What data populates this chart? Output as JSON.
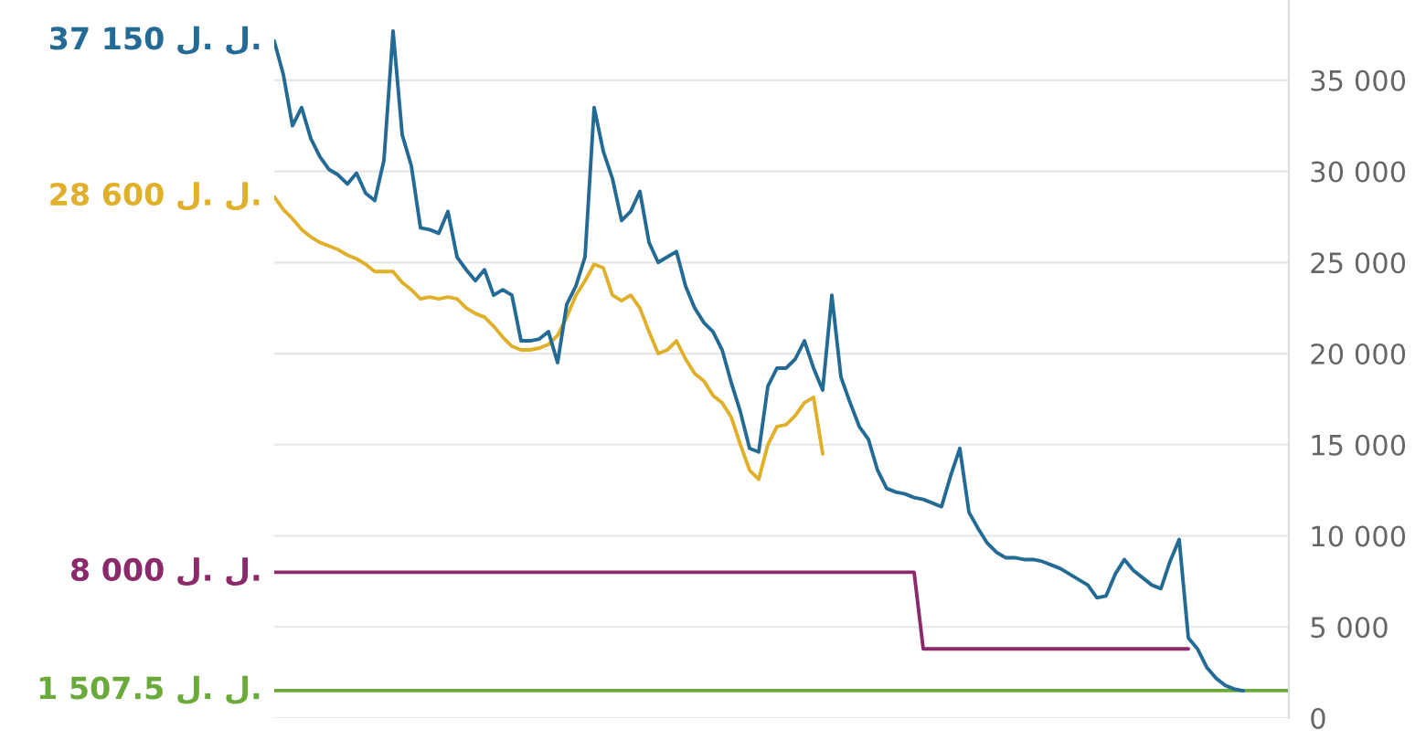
{
  "chart_data": {
    "type": "line",
    "categories": [
      null,
      null,
      null,
      null,
      null,
      null,
      null,
      null,
      null,
      null,
      null,
      null,
      null,
      null,
      null,
      null,
      null,
      null,
      null,
      null,
      null,
      null,
      null,
      null,
      null,
      null,
      null,
      null,
      null,
      null,
      null,
      null,
      null,
      null,
      null,
      null,
      null,
      null,
      null,
      null,
      null,
      null,
      null,
      null,
      null,
      null,
      null,
      null,
      null,
      null,
      null,
      null,
      null,
      null,
      null,
      null,
      null,
      null,
      null,
      null,
      null,
      null,
      null,
      null,
      null,
      null,
      null,
      null,
      null,
      null,
      null,
      null,
      null,
      null,
      null,
      null,
      null,
      null,
      null,
      null,
      null,
      null,
      null,
      null,
      null,
      null,
      null,
      null,
      null,
      null,
      null,
      null,
      null,
      null,
      null,
      null,
      null,
      null,
      null,
      null,
      null,
      null,
      null,
      null,
      null,
      null,
      null,
      null,
      null,
      null,
      null,
      null
    ],
    "series": [
      {
        "name": "1 507.5 ل. ل.",
        "color": "#6aaa3a",
        "values": [
          1507.5,
          1507.5,
          1507.5,
          1507.5,
          1507.5,
          1507.5,
          1507.5,
          1507.5,
          1507.5,
          1507.5,
          1507.5,
          1507.5,
          1507.5,
          1507.5,
          1507.5,
          1507.5,
          1507.5,
          1507.5,
          1507.5,
          1507.5,
          1507.5,
          1507.5,
          1507.5,
          1507.5,
          1507.5,
          1507.5,
          1507.5,
          1507.5,
          1507.5,
          1507.5,
          1507.5,
          1507.5,
          1507.5,
          1507.5,
          1507.5,
          1507.5,
          1507.5,
          1507.5,
          1507.5,
          1507.5,
          1507.5,
          1507.5,
          1507.5,
          1507.5,
          1507.5,
          1507.5,
          1507.5,
          1507.5,
          1507.5,
          1507.5,
          1507.5,
          1507.5,
          1507.5,
          1507.5,
          1507.5,
          1507.5,
          1507.5,
          1507.5,
          1507.5,
          1507.5,
          1507.5,
          1507.5,
          1507.5,
          1507.5,
          1507.5,
          1507.5,
          1507.5,
          1507.5,
          1507.5,
          1507.5,
          1507.5,
          1507.5,
          1507.5,
          1507.5,
          1507.5,
          1507.5,
          1507.5,
          1507.5,
          1507.5,
          1507.5,
          1507.5,
          1507.5,
          1507.5,
          1507.5,
          1507.5,
          1507.5,
          1507.5,
          1507.5,
          1507.5,
          1507.5,
          1507.5,
          1507.5,
          1507.5,
          1507.5,
          1507.5,
          1507.5,
          1507.5,
          1507.5,
          1507.5,
          1507.5,
          1507.5,
          1507.5,
          1507.5,
          1507.5,
          1507.5,
          1507.5,
          1507.5,
          1507.5,
          1507.5,
          1507.5,
          1507.5,
          1507.5
        ]
      },
      {
        "name": "8 000 ل. ل.",
        "color": "#8b2a6b",
        "values": [
          8000,
          8000,
          8000,
          8000,
          8000,
          8000,
          8000,
          8000,
          8000,
          8000,
          8000,
          8000,
          8000,
          8000,
          8000,
          8000,
          8000,
          8000,
          8000,
          8000,
          8000,
          8000,
          8000,
          8000,
          8000,
          8000,
          8000,
          8000,
          8000,
          8000,
          8000,
          8000,
          8000,
          8000,
          8000,
          8000,
          8000,
          8000,
          8000,
          8000,
          8000,
          8000,
          8000,
          8000,
          8000,
          8000,
          8000,
          8000,
          8000,
          8000,
          8000,
          8000,
          8000,
          8000,
          8000,
          8000,
          8000,
          8000,
          8000,
          8000,
          8000,
          8000,
          8000,
          8000,
          8000,
          8000,
          8000,
          8000,
          8000,
          8000,
          8000,
          3800,
          3800,
          3800,
          3800,
          3800,
          3800,
          3800,
          3800,
          3800,
          3800,
          3800,
          3800,
          3800,
          3800,
          3800,
          3800,
          3800,
          3800,
          3800,
          3800,
          3800,
          3800,
          3800,
          3800,
          3800,
          3800,
          3800,
          3800,
          3800,
          3800,
          null,
          null,
          null,
          null,
          null,
          null,
          null,
          null,
          null,
          null,
          null
        ]
      },
      {
        "name": "28 600 ل. ل.",
        "color": "#e0b02a",
        "values": [
          28600,
          27900,
          27400,
          26800,
          26400,
          26100,
          25900,
          25700,
          25400,
          25200,
          24900,
          24500,
          24500,
          24500,
          23900,
          23500,
          23000,
          23100,
          23000,
          23100,
          23000,
          22500,
          22200,
          22000,
          21500,
          20900,
          20400,
          20200,
          20200,
          20300,
          20500,
          21000,
          22000,
          23200,
          24000,
          24900,
          24700,
          23200,
          22900,
          23200,
          22500,
          21200,
          20000,
          20200,
          20700,
          19700,
          18900,
          18500,
          17700,
          17300,
          16500,
          15000,
          13600,
          13100,
          15000,
          16000,
          16100,
          16600,
          17300,
          17600,
          14500,
          null,
          null,
          null,
          null,
          null,
          null,
          null,
          null,
          null,
          null,
          null,
          null,
          null,
          null,
          null,
          null,
          null,
          null,
          null,
          null,
          null,
          null,
          null,
          null,
          null,
          null,
          null,
          null,
          null,
          null,
          null,
          null,
          null,
          null,
          null,
          null,
          null,
          null,
          null,
          null,
          null,
          null,
          null,
          null,
          null,
          null,
          null,
          null,
          null,
          null,
          null
        ]
      },
      {
        "name": "37 150 ل. ل.",
        "color": "#236b94",
        "values": [
          37150,
          35300,
          32500,
          33500,
          31800,
          30800,
          30100,
          29800,
          29300,
          29900,
          28800,
          28400,
          30600,
          37700,
          32000,
          30300,
          26900,
          26800,
          26600,
          27800,
          25300,
          24600,
          24000,
          24600,
          23200,
          23500,
          23200,
          20700,
          20700,
          20800,
          21200,
          19500,
          22700,
          23700,
          25300,
          33500,
          31100,
          29600,
          27300,
          27800,
          28900,
          26100,
          25000,
          25300,
          25600,
          23700,
          22500,
          21700,
          21200,
          20200,
          18400,
          16800,
          14800,
          14600,
          18200,
          19200,
          19200,
          19700,
          20700,
          19200,
          18000,
          23200,
          18700,
          17300,
          16000,
          15300,
          13600,
          12600,
          12400,
          12300,
          12100,
          12000,
          11800,
          11600,
          13300,
          14800,
          11300,
          10400,
          9600,
          9100,
          8800,
          8800,
          8700,
          8700,
          8600,
          8400,
          8200,
          7900,
          7600,
          7300,
          6600,
          6700,
          7900,
          8700,
          8100,
          7700,
          7300,
          7100,
          8600,
          9800,
          4400,
          3800,
          2800,
          2200,
          1800,
          1600,
          1500,
          null,
          null,
          null,
          null,
          null
        ]
      }
    ],
    "ylim": [
      0,
      39400
    ],
    "yticks": [
      {
        "value": 0,
        "label": "0"
      },
      {
        "value": 5000,
        "label": "5 000"
      },
      {
        "value": 10000,
        "label": "10 000"
      },
      {
        "value": 15000,
        "label": "15 000"
      },
      {
        "value": 20000,
        "label": "20 000"
      },
      {
        "value": 25000,
        "label": "25 000"
      },
      {
        "value": 30000,
        "label": "30 000"
      },
      {
        "value": 35000,
        "label": "35 000"
      }
    ],
    "grid": "y",
    "tick_labels": "y"
  }
}
